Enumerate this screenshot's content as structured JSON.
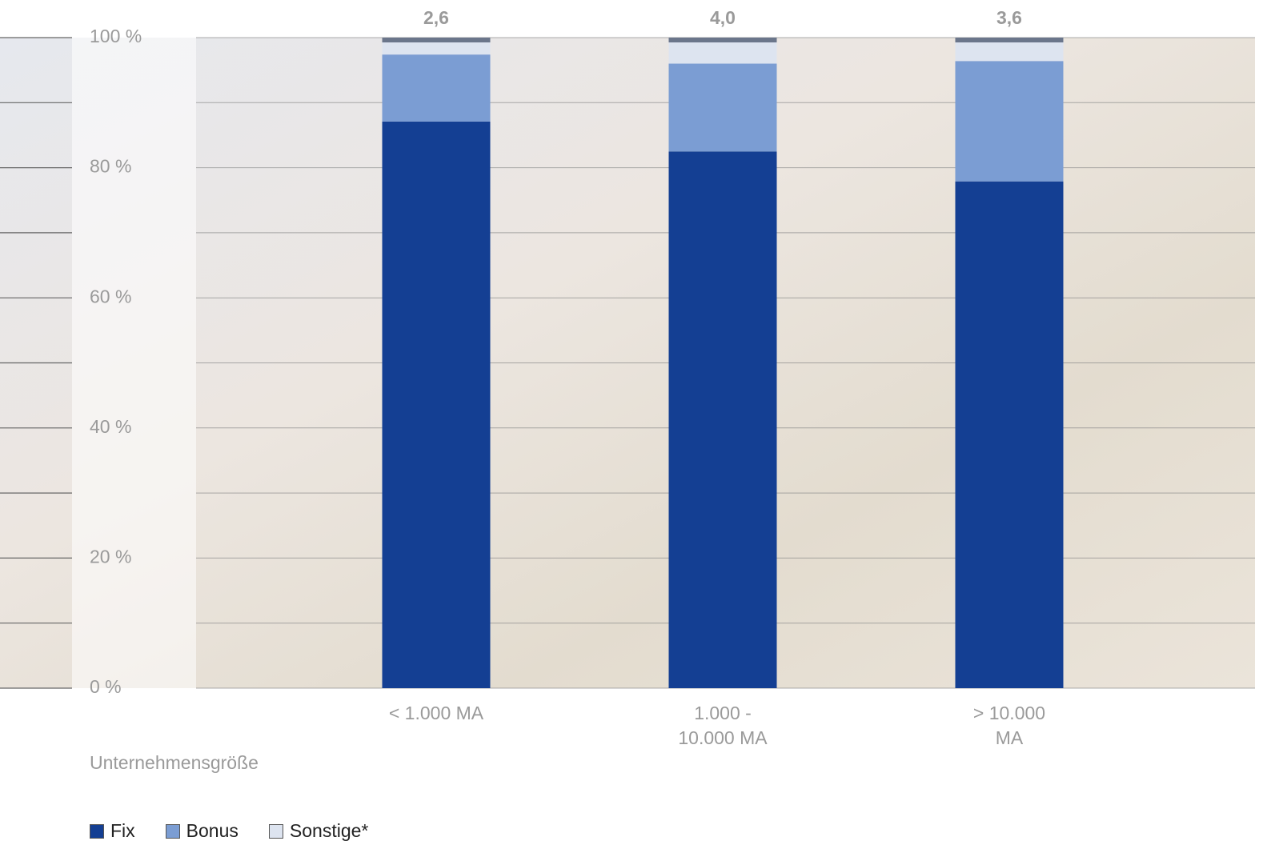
{
  "chart_data": {
    "type": "stacked_bar",
    "categories": [
      "< 1.000 MA",
      "1.000 -\n10.000 MA",
      "> 10.000\nMA"
    ],
    "series": [
      {
        "name": "Fix",
        "color": "#143f93",
        "values": [
          87.1,
          82.5,
          77.9
        ]
      },
      {
        "name": "Bonus",
        "color": "#7b9dd3",
        "values": [
          10.3,
          13.5,
          18.5
        ]
      },
      {
        "name": "Sonstige*",
        "color": "#dde4f0",
        "values": [
          2.6,
          4.0,
          3.6
        ],
        "value_labels": [
          "2,6",
          "4,0",
          "3,6"
        ]
      }
    ],
    "x_label": "Unternehmensgröße",
    "ylim": [
      0,
      100
    ],
    "yticks": [
      {
        "value": 0,
        "label": "0 %"
      },
      {
        "value": 20,
        "label": "20 %"
      },
      {
        "value": 40,
        "label": "40 %"
      },
      {
        "value": 60,
        "label": "60 %"
      },
      {
        "value": 80,
        "label": "80 %"
      },
      {
        "value": 100,
        "label": "100 %"
      }
    ],
    "minor_yticks": [
      10,
      30,
      50,
      70,
      90
    ],
    "grid": true,
    "legend": "bottom"
  }
}
